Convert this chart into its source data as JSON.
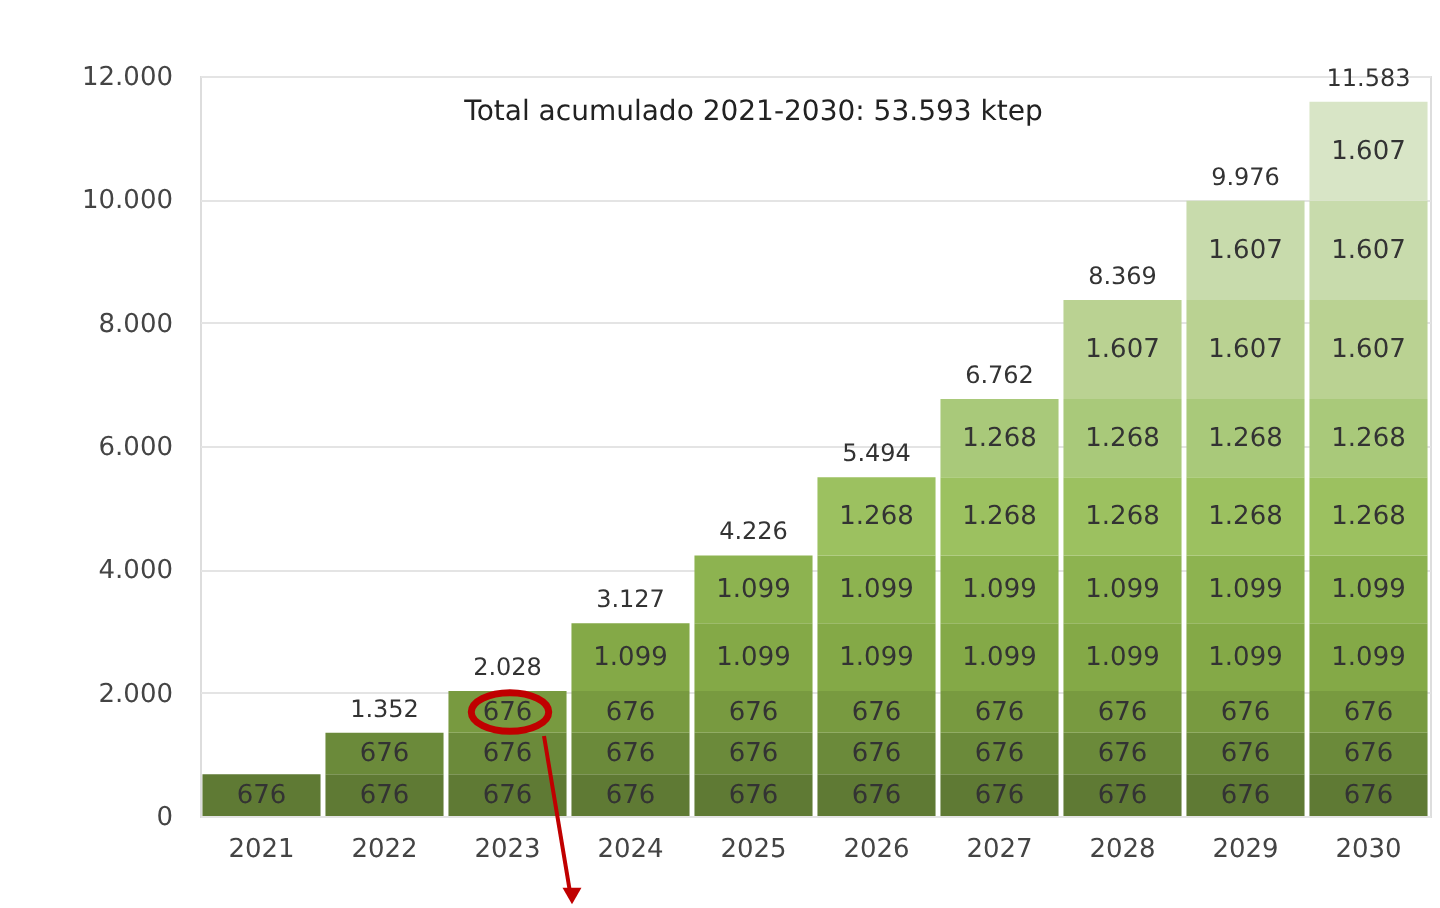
{
  "chart_data": {
    "type": "bar",
    "stacked": true,
    "grid": "y",
    "categories": [
      "2021",
      "2022",
      "2023",
      "2024",
      "2025",
      "2026",
      "2027",
      "2028",
      "2029",
      "2030"
    ],
    "series": [
      {
        "color": "#5f7a34",
        "values": [
          676,
          676,
          676,
          676,
          676,
          676,
          676,
          676,
          676,
          676
        ],
        "value_labels": [
          "676",
          "676",
          "676",
          "676",
          "676",
          "676",
          "676",
          "676",
          "676",
          "676"
        ]
      },
      {
        "color": "#6b8a3a",
        "values": [
          null,
          676,
          676,
          676,
          676,
          676,
          676,
          676,
          676,
          676
        ],
        "value_labels": [
          null,
          "676",
          "676",
          "676",
          "676",
          "676",
          "676",
          "676",
          "676",
          "676"
        ]
      },
      {
        "color": "#789a40",
        "values": [
          null,
          null,
          676,
          676,
          676,
          676,
          676,
          676,
          676,
          676
        ],
        "value_labels": [
          null,
          null,
          "676",
          "676",
          "676",
          "676",
          "676",
          "676",
          "676",
          "676"
        ]
      },
      {
        "color": "#84a947",
        "values": [
          null,
          null,
          null,
          1099,
          1099,
          1099,
          1099,
          1099,
          1099,
          1099
        ],
        "value_labels": [
          null,
          null,
          null,
          "1.099",
          "1.099",
          "1.099",
          "1.099",
          "1.099",
          "1.099",
          "1.099"
        ]
      },
      {
        "color": "#8db350",
        "values": [
          null,
          null,
          null,
          null,
          1099,
          1099,
          1099,
          1099,
          1099,
          1099
        ],
        "value_labels": [
          null,
          null,
          null,
          null,
          "1.099",
          "1.099",
          "1.099",
          "1.099",
          "1.099",
          "1.099"
        ]
      },
      {
        "color": "#9cc160",
        "values": [
          null,
          null,
          null,
          null,
          null,
          1268,
          1268,
          1268,
          1268,
          1268
        ],
        "value_labels": [
          null,
          null,
          null,
          null,
          null,
          "1.268",
          "1.268",
          "1.268",
          "1.268",
          "1.268"
        ]
      },
      {
        "color": "#a9c97a",
        "values": [
          null,
          null,
          null,
          null,
          null,
          null,
          1268,
          1268,
          1268,
          1268
        ],
        "value_labels": [
          null,
          null,
          null,
          null,
          null,
          null,
          "1.268",
          "1.268",
          "1.268",
          "1.268"
        ]
      },
      {
        "color": "#bad292",
        "values": [
          null,
          null,
          null,
          null,
          null,
          null,
          null,
          1607,
          1607,
          1607
        ],
        "value_labels": [
          null,
          null,
          null,
          null,
          null,
          null,
          null,
          "1.607",
          "1.607",
          "1.607"
        ]
      },
      {
        "color": "#c8dbac",
        "values": [
          null,
          null,
          null,
          null,
          null,
          null,
          null,
          null,
          1607,
          1607
        ],
        "value_labels": [
          null,
          null,
          null,
          null,
          null,
          null,
          null,
          null,
          "1.607",
          "1.607"
        ]
      },
      {
        "color": "#d8e5c6",
        "values": [
          null,
          null,
          null,
          null,
          null,
          null,
          null,
          null,
          null,
          1607
        ],
        "value_labels": [
          null,
          null,
          null,
          null,
          null,
          null,
          null,
          null,
          null,
          "1.607"
        ]
      }
    ],
    "totals": [
      null,
      "1.352",
      "2.028",
      "3.127",
      "4.226",
      "5.494",
      "6.762",
      "8.369",
      "9.976",
      "11.583"
    ],
    "ylim": [
      0,
      12000
    ],
    "yticks": [
      0,
      {
        "value": 2000,
        "label": "2.000"
      },
      {
        "value": 4000,
        "label": "4.000"
      },
      {
        "value": 6000,
        "label": "6.000"
      },
      {
        "value": 8000,
        "label": "8.000"
      },
      {
        "value": 10000,
        "label": "10.000"
      },
      {
        "value": 12000,
        "label": "12.000"
      }
    ],
    "annotations": [
      "Total acumulado 2021-2030: 53.593 ktep"
    ]
  }
}
